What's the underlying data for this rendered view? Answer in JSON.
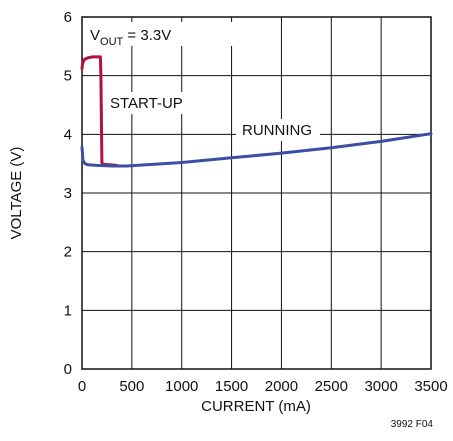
{
  "chart_data": {
    "type": "line",
    "xlabel": "CURRENT (mA)",
    "ylabel": "VOLTAGE (V)",
    "xlim": [
      0,
      3500
    ],
    "ylim": [
      0,
      6
    ],
    "x_ticks": [
      0,
      500,
      1000,
      1500,
      2000,
      2500,
      3000,
      3500
    ],
    "y_ticks": [
      0,
      1,
      2,
      3,
      4,
      5,
      6
    ],
    "grid": true,
    "annotations": {
      "vout_main": "V",
      "vout_sub": "OUT",
      "vout_value": " = 3.3V",
      "startup": "START-UP",
      "running": "RUNNING"
    },
    "figure_code": "3992 F04",
    "series": [
      {
        "color": "#b0123b",
        "x": [
          0,
          5,
          20,
          50,
          100,
          150,
          185,
          190,
          200,
          205,
          210,
          350
        ],
        "y": [
          5.12,
          5.2,
          5.27,
          5.3,
          5.32,
          5.32,
          5.32,
          5.0,
          3.52,
          3.5,
          3.49,
          3.47
        ]
      },
      {
        "color": "#3a4fa3",
        "x": [
          0,
          10,
          30,
          60,
          150,
          300,
          450,
          1000,
          1500,
          2000,
          2500,
          3000,
          3500
        ],
        "y": [
          3.78,
          3.55,
          3.5,
          3.48,
          3.47,
          3.46,
          3.46,
          3.52,
          3.6,
          3.68,
          3.77,
          3.88,
          4.01
        ]
      }
    ]
  }
}
